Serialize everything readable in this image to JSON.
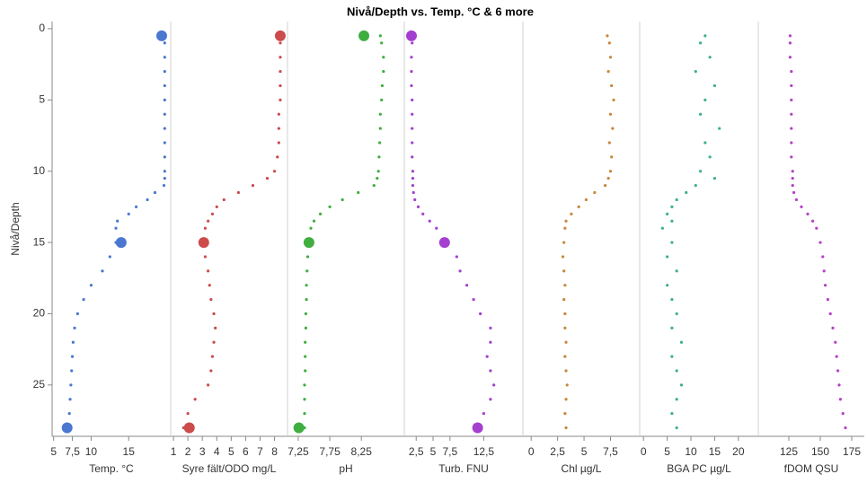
{
  "chart_data": {
    "type": "scatter",
    "title": "Nivå/Depth vs. Temp. °C & 6 more",
    "ylabel": "Nivå/Depth",
    "ylim": [
      28.6,
      -0.5
    ],
    "yticks": [
      0,
      5,
      10,
      15,
      20,
      25
    ],
    "depth": [
      0.5,
      1,
      2,
      3,
      4,
      5,
      6,
      7,
      8,
      9,
      10,
      10.5,
      11,
      11.5,
      12,
      12.5,
      13,
      13.5,
      14,
      15,
      16,
      17,
      18,
      19,
      20,
      21,
      22,
      23,
      24,
      25,
      26,
      27,
      28
    ],
    "highlight_depth": [
      0.5,
      15,
      28
    ],
    "panels": [
      {
        "xlabel": "Temp. °C",
        "color": "#4a78d0",
        "xlim": [
          4.8,
          20.6
        ],
        "xticks": [
          5,
          {
            "value": 7.5,
            "label": "7,5"
          },
          10,
          15
        ],
        "values": [
          19.8,
          19.8,
          19.8,
          19.8,
          19.8,
          19.8,
          19.8,
          19.8,
          19.8,
          19.8,
          19.8,
          19.8,
          19.7,
          18.5,
          17.5,
          16,
          15,
          13.5,
          13.3,
          13.3,
          12.5,
          11.5,
          10,
          9,
          8.2,
          7.8,
          7.6,
          7.5,
          7.4,
          7.3,
          7.2,
          7.1,
          7
        ],
        "highlight": [
          19.4,
          14,
          6.8
        ]
      },
      {
        "xlabel": "Syre fält/ODO mg/L",
        "color": "#cc4b4b",
        "xlim": [
          0.81,
          8.9
        ],
        "xticks": [
          1,
          2,
          3,
          4,
          5,
          6,
          7,
          8
        ],
        "values": [
          8.4,
          8.4,
          8.4,
          8.4,
          8.4,
          8.4,
          8.3,
          8.3,
          8.3,
          8.2,
          8.0,
          7.5,
          6.5,
          5.5,
          4.5,
          4,
          3.7,
          3.4,
          3.2,
          3.1,
          3.2,
          3.4,
          3.5,
          3.6,
          3.8,
          3.9,
          3.8,
          3.7,
          3.6,
          3.4,
          2.5,
          2,
          1.7
        ],
        "highlight": [
          8.4,
          3.1,
          2.1
        ]
      },
      {
        "xlabel": "pH",
        "color": "#3fae3f",
        "xlim": [
          7.08,
          8.93
        ],
        "xticks": [
          {
            "value": 7.25,
            "label": "7,25"
          },
          {
            "value": 7.75,
            "label": "7,75"
          },
          {
            "value": 8.25,
            "label": "8,25"
          }
        ],
        "values": [
          8.55,
          8.57,
          8.6,
          8.6,
          8.58,
          8.57,
          8.55,
          8.55,
          8.54,
          8.53,
          8.52,
          8.5,
          8.45,
          8.2,
          7.95,
          7.75,
          7.6,
          7.5,
          7.45,
          7.42,
          7.4,
          7.39,
          7.38,
          7.38,
          7.37,
          7.37,
          7.36,
          7.36,
          7.36,
          7.35,
          7.35,
          7.35,
          7.35
        ],
        "highlight": [
          8.29,
          7.42,
          7.26
        ]
      },
      {
        "xlabel": "Turb. FNU",
        "color": "#a43fd0",
        "xlim": [
          0.74,
          18.3
        ],
        "xticks": [
          {
            "value": 2.5,
            "label": "2,5"
          },
          5,
          {
            "value": 7.5,
            "label": "7,5"
          },
          {
            "value": 12.5,
            "label": "12,5"
          }
        ],
        "values": [
          1.9,
          1.9,
          1.8,
          1.8,
          1.8,
          1.9,
          1.9,
          1.9,
          1.9,
          1.9,
          2,
          2,
          2,
          2.1,
          2.3,
          2.8,
          3.5,
          4.5,
          5.5,
          7,
          8.5,
          9,
          10,
          11,
          12,
          13.5,
          13.5,
          13,
          13.5,
          14,
          13.5,
          12.5,
          12
        ],
        "highlight": [
          1.8,
          6.7,
          11.6
        ]
      },
      {
        "xlabel": "Chl µg/L",
        "color": "#c8873a",
        "xlim": [
          -0.78,
          10.26
        ],
        "xticks": [
          0,
          {
            "value": 2.5,
            "label": "2,5"
          },
          5,
          {
            "value": 7.5,
            "label": "7,5"
          }
        ],
        "values": [
          7.2,
          7.4,
          7.5,
          7.3,
          7.6,
          7.8,
          7.5,
          7.7,
          7.4,
          7.6,
          7.5,
          7.3,
          7,
          6,
          5.2,
          4.5,
          3.8,
          3.3,
          3.2,
          3.1,
          3,
          3.1,
          3.2,
          3.1,
          3.2,
          3.2,
          3.3,
          3.2,
          3.3,
          3.4,
          3.3,
          3.2,
          3.3
        ]
      },
      {
        "xlabel": "BGA PC µg/L",
        "color": "#3bb08f",
        "xlim": [
          -0.8,
          24.2
        ],
        "xticks": [
          0,
          5,
          10,
          15,
          20
        ],
        "values": [
          13,
          12,
          14,
          11,
          15,
          13,
          12,
          16,
          13,
          14,
          12,
          15,
          11,
          9,
          7,
          6,
          5,
          6,
          4,
          6,
          5,
          7,
          5,
          6,
          7,
          6,
          8,
          6,
          7,
          8,
          7,
          6,
          7
        ]
      },
      {
        "xlabel": "fDOM QSU",
        "color": "#b73fc9",
        "xlim": [
          100.7,
          185
        ],
        "xticks": [
          125,
          150,
          175
        ],
        "values": [
          126,
          126,
          126,
          127,
          127,
          127,
          127,
          127,
          127,
          127,
          128,
          128,
          128,
          129,
          131,
          135,
          140,
          144,
          147,
          150,
          152,
          153,
          154,
          156,
          158,
          160,
          162,
          163,
          164,
          165,
          166,
          168,
          170
        ]
      }
    ]
  }
}
